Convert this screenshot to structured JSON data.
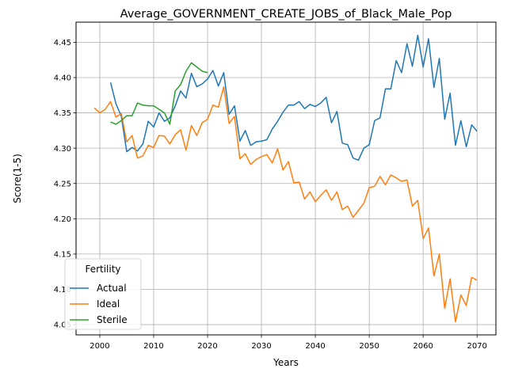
{
  "chart_data": {
    "type": "line",
    "title": "Average_GOVERNMENT_CREATE_JOBS_of_Black_Male_Pop",
    "xlabel": "Years",
    "ylabel": "Score(1-5)",
    "xlim": [
      1995.6,
      2073.5
    ],
    "ylim": [
      4.0355,
      4.4785
    ],
    "xticks": [
      2000,
      2010,
      2020,
      2030,
      2040,
      2050,
      2060,
      2070
    ],
    "yticks": [
      4.05,
      4.1,
      4.15,
      4.2,
      4.25,
      4.3,
      4.35,
      4.4,
      4.45
    ],
    "grid": true,
    "legend": {
      "title": "Fertility",
      "placement": "lower-left"
    },
    "series": [
      {
        "name": "Actual",
        "color": "#1f77b4",
        "x": [
          2002,
          2003,
          2004,
          2005,
          2006,
          2007,
          2008,
          2009,
          2010,
          2011,
          2012,
          2013,
          2014,
          2015,
          2016,
          2017,
          2018,
          2019,
          2020,
          2021,
          2022,
          2023,
          2024,
          2025,
          2026,
          2027,
          2028,
          2029,
          2030,
          2031,
          2032,
          2033,
          2034,
          2035,
          2036,
          2037,
          2038,
          2039,
          2040,
          2041,
          2042,
          2043,
          2044,
          2045,
          2046,
          2047,
          2048,
          2049,
          2050,
          2051,
          2052,
          2053,
          2054,
          2055,
          2056,
          2057,
          2058,
          2059,
          2060,
          2061,
          2062,
          2063,
          2064,
          2065,
          2066,
          2067,
          2068,
          2069,
          2070
        ],
        "y": [
          4.393,
          4.363,
          4.345,
          4.295,
          4.301,
          4.296,
          4.306,
          4.338,
          4.33,
          4.35,
          4.338,
          4.343,
          4.36,
          4.381,
          4.371,
          4.406,
          4.387,
          4.391,
          4.398,
          4.41,
          4.388,
          4.407,
          4.348,
          4.36,
          4.31,
          4.325,
          4.304,
          4.309,
          4.31,
          4.312,
          4.327,
          4.338,
          4.351,
          4.361,
          4.361,
          4.366,
          4.356,
          4.362,
          4.359,
          4.364,
          4.372,
          4.336,
          4.352,
          4.307,
          4.305,
          4.286,
          4.283,
          4.3,
          4.305,
          4.339,
          4.343,
          4.384,
          4.384,
          4.424,
          4.407,
          4.448,
          4.416,
          4.46,
          4.415,
          4.455,
          4.386,
          4.427,
          4.341,
          4.378,
          4.304,
          4.339,
          4.302,
          4.333,
          4.324
        ]
      },
      {
        "name": "Ideal",
        "color": "#ff7f0e",
        "x": [
          1999,
          2000,
          2001,
          2002,
          2003,
          2004,
          2005,
          2006,
          2007,
          2008,
          2009,
          2010,
          2011,
          2012,
          2013,
          2014,
          2015,
          2016,
          2017,
          2018,
          2019,
          2020,
          2021,
          2022,
          2023,
          2024,
          2025,
          2026,
          2027,
          2028,
          2029,
          2030,
          2031,
          2032,
          2033,
          2034,
          2035,
          2036,
          2037,
          2038,
          2039,
          2040,
          2041,
          2042,
          2043,
          2044,
          2045,
          2046,
          2047,
          2048,
          2049,
          2050,
          2051,
          2052,
          2053,
          2054,
          2055,
          2056,
          2057,
          2058,
          2059,
          2060,
          2061,
          2062,
          2063,
          2064,
          2065,
          2066,
          2067,
          2068,
          2069,
          2070
        ],
        "y": [
          4.357,
          4.35,
          4.355,
          4.366,
          4.344,
          4.349,
          4.309,
          4.318,
          4.286,
          4.289,
          4.304,
          4.301,
          4.318,
          4.317,
          4.306,
          4.319,
          4.326,
          4.297,
          4.332,
          4.318,
          4.336,
          4.341,
          4.361,
          4.358,
          4.387,
          4.335,
          4.345,
          4.285,
          4.292,
          4.277,
          4.284,
          4.288,
          4.291,
          4.279,
          4.299,
          4.269,
          4.281,
          4.251,
          4.252,
          4.228,
          4.238,
          4.224,
          4.233,
          4.241,
          4.226,
          4.238,
          4.213,
          4.218,
          4.202,
          4.212,
          4.222,
          4.244,
          4.246,
          4.26,
          4.248,
          4.262,
          4.258,
          4.253,
          4.255,
          4.218,
          4.226,
          4.172,
          4.187,
          4.119,
          4.15,
          4.073,
          4.115,
          4.054,
          4.092,
          4.077,
          4.117,
          4.113
        ]
      },
      {
        "name": "Sterile",
        "color": "#2ca02c",
        "x": [
          2002,
          2003,
          2004,
          2005,
          2006,
          2007,
          2008,
          2009,
          2010,
          2011,
          2012,
          2013,
          2014,
          2015,
          2016,
          2017,
          2018,
          2019,
          2020
        ],
        "y": [
          4.337,
          4.334,
          4.339,
          4.346,
          4.346,
          4.364,
          4.361,
          4.36,
          4.36,
          4.355,
          4.35,
          4.334,
          4.381,
          4.39,
          4.409,
          4.421,
          4.415,
          4.409,
          4.407
        ]
      }
    ]
  }
}
